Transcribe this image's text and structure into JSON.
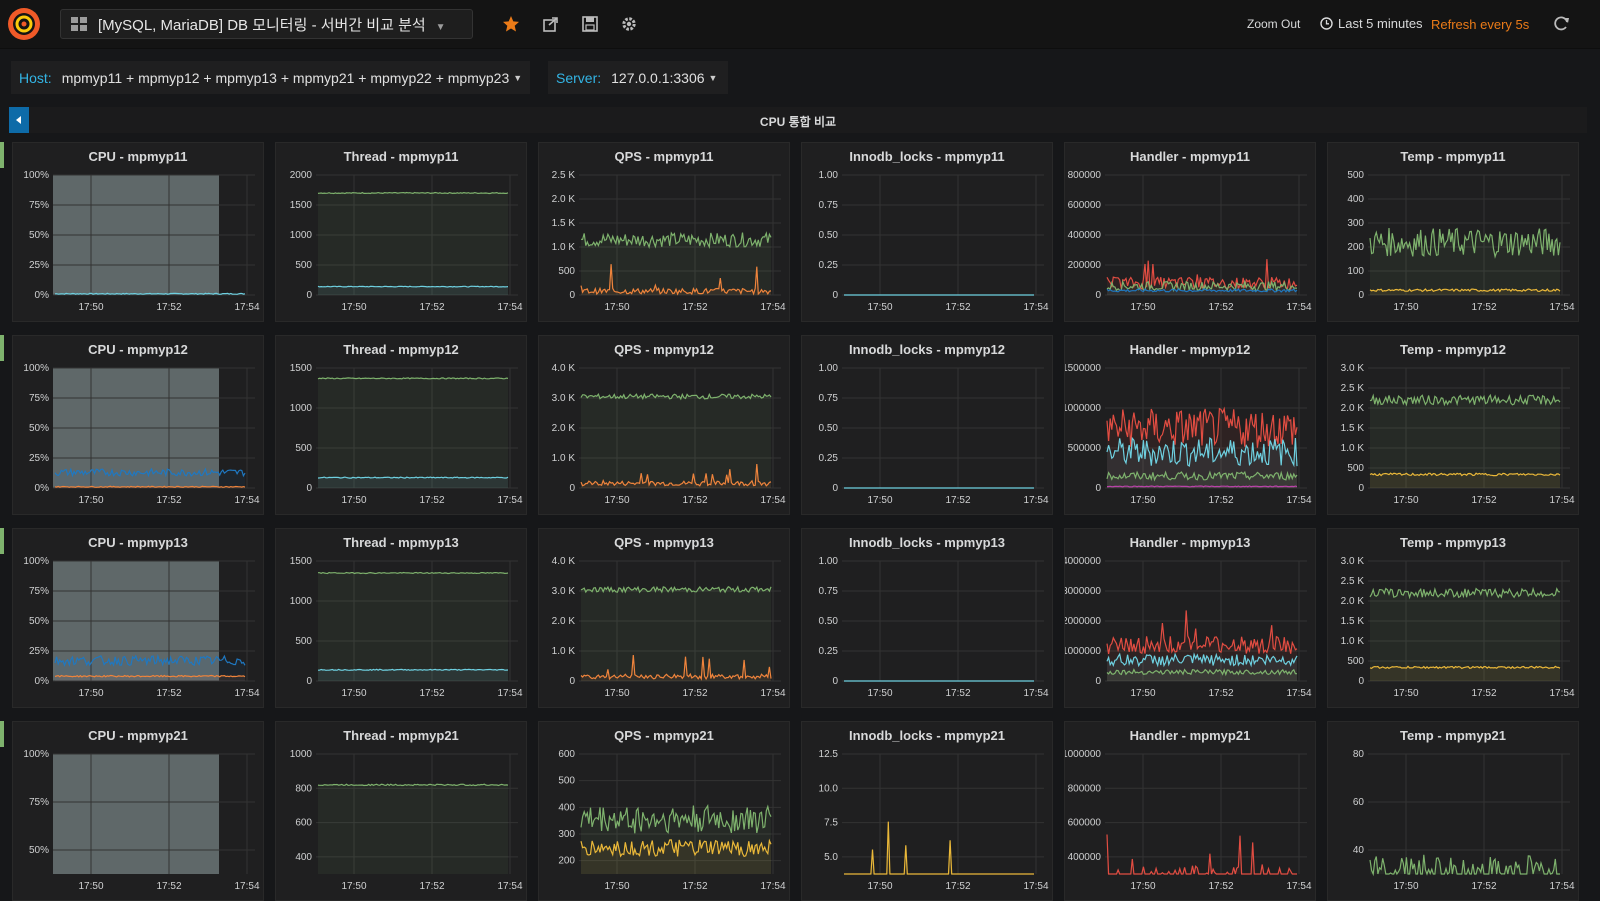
{
  "nav": {
    "dashboard_title": "[MySQL, MariaDB] DB 모니터링 - 서버간 비교 분석",
    "zoom_out": "Zoom Out",
    "time_range": "Last 5 minutes",
    "refresh": "Refresh every 5s",
    "icons": [
      "grafana-logo-icon",
      "dashboard-grid-icon",
      "star-icon",
      "share-icon",
      "save-icon",
      "settings-icon",
      "clock-icon",
      "refresh-icon"
    ]
  },
  "variables": {
    "host_label": "Host:",
    "host_value": "mpmyp11 + mpmyp12 + mpmyp13 + mpmyp21 + mpmyp22 + mpmyp23",
    "server_label": "Server:",
    "server_value": "127.0.0.1:3306"
  },
  "row": {
    "title": "CPU 통합 비교"
  },
  "colors": {
    "green": "#7eb26d",
    "cyan": "#6ed0e0",
    "orange": "#ef843c",
    "yellow": "#eab839",
    "red": "#e24d42",
    "blue": "#1f78c1",
    "purple": "#ba43a9",
    "accent": "#eb7b18"
  },
  "time_ticks": [
    "17:50",
    "17:52",
    "17:54"
  ],
  "panel_rows": [
    {
      "host": "mpmyp11",
      "panels": [
        {
          "type": "CPU",
          "title": "CPU - mpmyp11",
          "yticks": [
            "100%",
            "75%",
            "50%",
            "25%",
            "0%"
          ],
          "ymax": 1,
          "series": [
            {
              "color": "#6ed0e0",
              "level": 0.01,
              "noise": 0.004
            }
          ]
        },
        {
          "type": "Thread",
          "title": "Thread - mpmyp11",
          "yticks": [
            "2000",
            "1500",
            "1000",
            "500",
            "0"
          ],
          "ymax": 2000,
          "series": [
            {
              "color": "#7eb26d",
              "level": 1700,
              "noise": 8
            },
            {
              "color": "#6ed0e0",
              "level": 140,
              "noise": 6
            }
          ]
        },
        {
          "type": "QPS",
          "title": "QPS - mpmyp11",
          "yticks": [
            "2.5 K",
            "2.0 K",
            "1.5 K",
            "1.0 K",
            "500",
            "0"
          ],
          "ymax": 2500,
          "series": [
            {
              "color": "#7eb26d",
              "level": 1150,
              "noise": 150
            },
            {
              "color": "#ef843c",
              "level": 80,
              "noise": 60,
              "spiky": 700
            }
          ]
        },
        {
          "type": "Innodb_locks",
          "title": "Innodb_locks - mpmyp11",
          "yticks": [
            "1.00",
            "0.75",
            "0.50",
            "0.25",
            "0"
          ],
          "ymax": 1,
          "series": [
            {
              "color": "#6ed0e0",
              "level": 0,
              "noise": 0
            }
          ]
        },
        {
          "type": "Handler",
          "title": "Handler - mpmyp11",
          "yticks": [
            "800000",
            "600000",
            "400000",
            "200000",
            "0"
          ],
          "ymax": 800000,
          "series": [
            {
              "color": "#e24d42",
              "level": 80000,
              "noise": 40000,
              "spiky": 220000
            },
            {
              "color": "#7eb26d",
              "level": 60000,
              "noise": 30000
            },
            {
              "color": "#1f78c1",
              "level": 30000,
              "noise": 10000
            }
          ]
        },
        {
          "type": "Temp",
          "title": "Temp - mpmyp11",
          "yticks": [
            "500",
            "400",
            "300",
            "200",
            "100",
            "0"
          ],
          "ymax": 500,
          "series": [
            {
              "color": "#7eb26d",
              "level": 220,
              "noise": 60
            },
            {
              "color": "#eab839",
              "level": 20,
              "noise": 5
            }
          ]
        }
      ]
    },
    {
      "host": "mpmyp12",
      "panels": [
        {
          "type": "CPU",
          "title": "CPU - mpmyp12",
          "yticks": [
            "100%",
            "75%",
            "50%",
            "25%",
            "0%"
          ],
          "ymax": 1,
          "series": [
            {
              "color": "#1f78c1",
              "level": 0.13,
              "noise": 0.03
            },
            {
              "color": "#ef843c",
              "level": 0.01,
              "noise": 0.004
            }
          ]
        },
        {
          "type": "Thread",
          "title": "Thread - mpmyp12",
          "yticks": [
            "1500",
            "1000",
            "500",
            "0"
          ],
          "ymax": 1500,
          "series": [
            {
              "color": "#7eb26d",
              "level": 1370,
              "noise": 6
            },
            {
              "color": "#6ed0e0",
              "level": 130,
              "noise": 6
            }
          ]
        },
        {
          "type": "QPS",
          "title": "QPS - mpmyp12",
          "yticks": [
            "4.0 K",
            "3.0 K",
            "2.0 K",
            "1.0 K",
            "0"
          ],
          "ymax": 4000,
          "series": [
            {
              "color": "#7eb26d",
              "level": 3050,
              "noise": 80
            },
            {
              "color": "#ef843c",
              "level": 150,
              "noise": 80,
              "spiky": 800
            }
          ]
        },
        {
          "type": "Innodb_locks",
          "title": "Innodb_locks - mpmyp12",
          "yticks": [
            "1.00",
            "0.75",
            "0.50",
            "0.25",
            "0"
          ],
          "ymax": 1,
          "series": [
            {
              "color": "#6ed0e0",
              "level": 0,
              "noise": 0
            }
          ]
        },
        {
          "type": "Handler",
          "title": "Handler - mpmyp12",
          "yticks": [
            "1500000",
            "1000000",
            "500000",
            "0"
          ],
          "ymax": 1500000,
          "series": [
            {
              "color": "#e24d42",
              "level": 750000,
              "noise": 250000
            },
            {
              "color": "#6ed0e0",
              "level": 450000,
              "noise": 180000
            },
            {
              "color": "#7eb26d",
              "level": 150000,
              "noise": 50000
            },
            {
              "color": "#ba43a9",
              "level": 20000,
              "noise": 5000
            }
          ]
        },
        {
          "type": "Temp",
          "title": "Temp - mpmyp12",
          "yticks": [
            "3.0 K",
            "2.5 K",
            "2.0 K",
            "1.5 K",
            "1.0 K",
            "500",
            "0"
          ],
          "ymax": 3000,
          "series": [
            {
              "color": "#7eb26d",
              "level": 2200,
              "noise": 120
            },
            {
              "color": "#eab839",
              "level": 340,
              "noise": 30
            }
          ]
        }
      ]
    },
    {
      "host": "mpmyp13",
      "panels": [
        {
          "type": "CPU",
          "title": "CPU - mpmyp13",
          "yticks": [
            "100%",
            "75%",
            "50%",
            "25%",
            "0%"
          ],
          "ymax": 1,
          "series": [
            {
              "color": "#1f78c1",
              "level": 0.17,
              "noise": 0.04
            },
            {
              "color": "#ef843c",
              "level": 0.04,
              "noise": 0.006
            }
          ]
        },
        {
          "type": "Thread",
          "title": "Thread - mpmyp13",
          "yticks": [
            "1500",
            "1000",
            "500",
            "0"
          ],
          "ymax": 1500,
          "series": [
            {
              "color": "#7eb26d",
              "level": 1350,
              "noise": 6
            },
            {
              "color": "#6ed0e0",
              "level": 140,
              "noise": 6
            }
          ]
        },
        {
          "type": "QPS",
          "title": "QPS - mpmyp13",
          "yticks": [
            "4.0 K",
            "3.0 K",
            "2.0 K",
            "1.0 K",
            "0"
          ],
          "ymax": 4000,
          "series": [
            {
              "color": "#7eb26d",
              "level": 3050,
              "noise": 90
            },
            {
              "color": "#ef843c",
              "level": 150,
              "noise": 80,
              "spiky": 800
            }
          ]
        },
        {
          "type": "Innodb_locks",
          "title": "Innodb_locks - mpmyp13",
          "yticks": [
            "1.00",
            "0.75",
            "0.50",
            "0.25",
            "0"
          ],
          "ymax": 1,
          "series": [
            {
              "color": "#6ed0e0",
              "level": 0,
              "noise": 0
            }
          ]
        },
        {
          "type": "Handler",
          "title": "Handler - mpmyp13",
          "yticks": [
            "4000000",
            "3000000",
            "2000000",
            "1000000",
            "0"
          ],
          "ymax": 4000000,
          "series": [
            {
              "color": "#e24d42",
              "level": 1200000,
              "noise": 300000,
              "spiky": 2300000
            },
            {
              "color": "#6ed0e0",
              "level": 700000,
              "noise": 200000
            },
            {
              "color": "#7eb26d",
              "level": 300000,
              "noise": 80000
            }
          ]
        },
        {
          "type": "Temp",
          "title": "Temp - mpmyp13",
          "yticks": [
            "3.0 K",
            "2.5 K",
            "2.0 K",
            "1.5 K",
            "1.0 K",
            "500",
            "0"
          ],
          "ymax": 3000,
          "series": [
            {
              "color": "#7eb26d",
              "level": 2200,
              "noise": 110
            },
            {
              "color": "#eab839",
              "level": 340,
              "noise": 25
            }
          ]
        }
      ]
    },
    {
      "host": "mpmyp21",
      "panels": [
        {
          "type": "CPU",
          "title": "CPU - mpmyp21",
          "yticks": [
            "100%",
            "75%",
            "50%"
          ],
          "ymax": 1,
          "ymin": 0.375,
          "series": []
        },
        {
          "type": "Thread",
          "title": "Thread - mpmyp21",
          "yticks": [
            "1000",
            "800",
            "600",
            "400"
          ],
          "ymax": 1000,
          "ymin": 300,
          "series": [
            {
              "color": "#7eb26d",
              "level": 820,
              "noise": 4
            }
          ]
        },
        {
          "type": "QPS",
          "title": "QPS - mpmyp21",
          "yticks": [
            "600",
            "500",
            "400",
            "300",
            "200"
          ],
          "ymax": 600,
          "ymin": 180,
          "series": [
            {
              "color": "#7eb26d",
              "level": 370,
              "noise": 50
            },
            {
              "color": "#eab839",
              "level": 270,
              "noise": 30
            }
          ]
        },
        {
          "type": "Innodb_locks",
          "title": "Innodb_locks - mpmyp21",
          "yticks": [
            "12.5",
            "10.0",
            "7.5",
            "5.0"
          ],
          "ymax": 12.5,
          "ymin": 3.75,
          "series": [
            {
              "color": "#eab839",
              "level": 2,
              "noise": 1,
              "spiky": 7
            }
          ]
        },
        {
          "type": "Handler",
          "title": "Handler - mpmyp21",
          "yticks": [
            "1000000",
            "800000",
            "600000",
            "400000"
          ],
          "ymax": 1000000,
          "ymin": 300000,
          "series": [
            {
              "color": "#e24d42",
              "level": 250000,
              "noise": 100000,
              "spiky": 400000
            }
          ]
        },
        {
          "type": "Temp",
          "title": "Temp - mpmyp21",
          "yticks": [
            "80",
            "60",
            "40"
          ],
          "ymax": 80,
          "ymin": 30,
          "series": [
            {
              "color": "#7eb26d",
              "level": 30,
              "noise": 8
            }
          ]
        }
      ]
    }
  ]
}
